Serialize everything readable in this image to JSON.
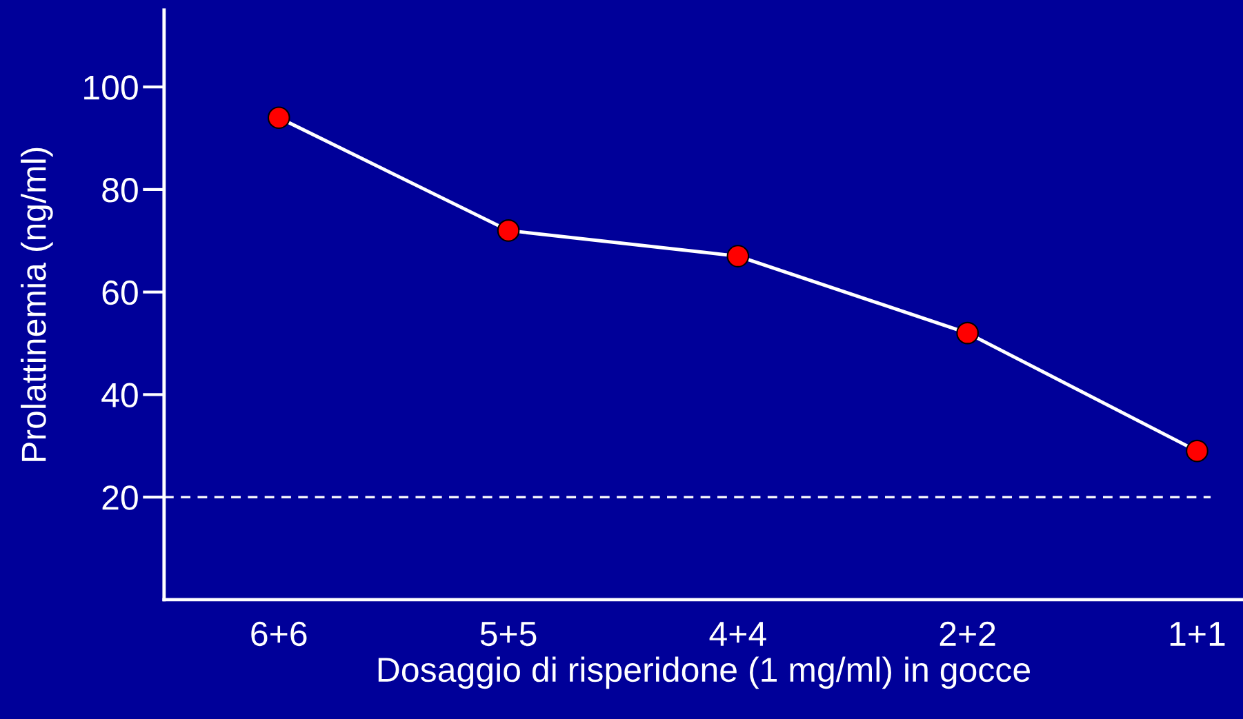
{
  "chart_data": {
    "type": "line",
    "xlabel": "Dosaggio di risperidone (1 mg/ml) in gocce",
    "ylabel": "Prolattinemia (ng/ml)",
    "categories": [
      "6+6",
      "5+5",
      "4+4",
      "2+2",
      "1+1"
    ],
    "series": [
      {
        "color": "#ff0000",
        "values": [
          94,
          72,
          67,
          52,
          29
        ]
      }
    ],
    "ylim": [
      0,
      115
    ],
    "yticks": [
      20,
      40,
      60,
      80,
      100
    ],
    "marker": "circle",
    "line_style": "solid",
    "grid": false,
    "legend": false,
    "ref_lines": [
      {
        "axis": "y",
        "value": 20,
        "color": "#ffffff",
        "line_style": "dashed"
      }
    ]
  }
}
